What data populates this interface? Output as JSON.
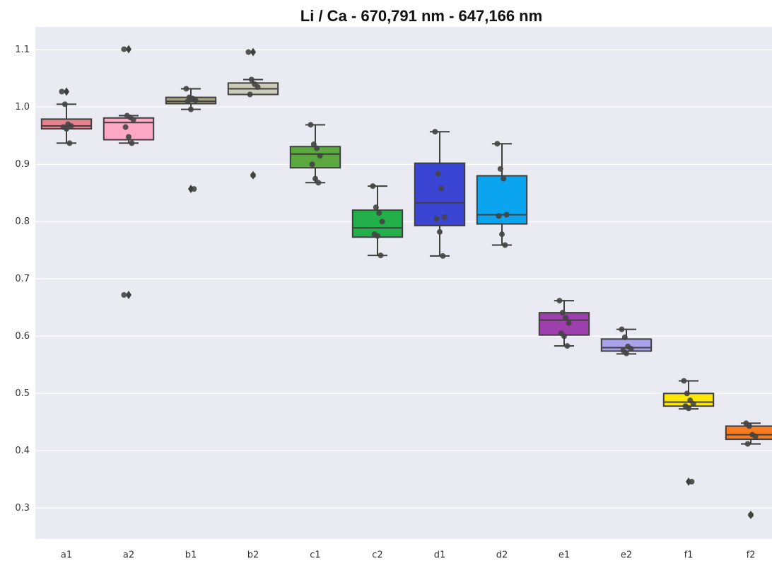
{
  "chart_data": {
    "type": "box",
    "title": "Li / Ca - 670,791 nm - 647,166 nm",
    "categories": [
      "a1",
      "a2",
      "b1",
      "b2",
      "c1",
      "c2",
      "d1",
      "d2",
      "e1",
      "e2",
      "f1",
      "f2"
    ],
    "colors": [
      "#e5808d",
      "#ffa8c5",
      "#a3a07a",
      "#cbcbb8",
      "#5ba83f",
      "#23b04b",
      "#3a45d4",
      "#0ba4ee",
      "#9d3fad",
      "#aaa2ea",
      "#fde704",
      "#f97c23"
    ],
    "boxes": [
      {
        "whislo": 0.937,
        "q1": 0.962,
        "med": 0.967,
        "q3": 0.979,
        "whishi": 1.005
      },
      {
        "whislo": 0.937,
        "q1": 0.943,
        "med": 0.973,
        "q3": 0.981,
        "whishi": 0.985
      },
      {
        "whislo": 0.996,
        "q1": 1.006,
        "med": 1.01,
        "q3": 1.017,
        "whishi": 1.032
      },
      {
        "whislo": 1.022,
        "q1": 1.022,
        "med": 1.032,
        "q3": 1.042,
        "whishi": 1.048
      },
      {
        "whislo": 0.868,
        "q1": 0.894,
        "med": 0.918,
        "q3": 0.931,
        "whishi": 0.969
      },
      {
        "whislo": 0.741,
        "q1": 0.773,
        "med": 0.789,
        "q3": 0.82,
        "whishi": 0.862
      },
      {
        "whislo": 0.74,
        "q1": 0.793,
        "med": 0.833,
        "q3": 0.902,
        "whishi": 0.957
      },
      {
        "whislo": 0.759,
        "q1": 0.796,
        "med": 0.812,
        "q3": 0.88,
        "whishi": 0.936
      },
      {
        "whislo": 0.583,
        "q1": 0.602,
        "med": 0.628,
        "q3": 0.641,
        "whishi": 0.662
      },
      {
        "whislo": 0.569,
        "q1": 0.574,
        "med": 0.58,
        "q3": 0.595,
        "whishi": 0.612
      },
      {
        "whislo": 0.473,
        "q1": 0.478,
        "med": 0.485,
        "q3": 0.5,
        "whishi": 0.522
      },
      {
        "whislo": 0.412,
        "q1": 0.42,
        "med": 0.428,
        "q3": 0.443,
        "whishi": 0.448
      }
    ],
    "fliers": [
      [
        1.027
      ],
      [
        1.101,
        0.672
      ],
      [
        0.857
      ],
      [
        1.096,
        0.881
      ],
      [],
      [],
      [],
      [],
      [],
      [],
      [
        0.346
      ],
      [
        0.288
      ]
    ],
    "points": [
      [
        1.027,
        1.005,
        0.97,
        0.967,
        0.965,
        0.962,
        0.937
      ],
      [
        1.101,
        0.985,
        0.982,
        0.978,
        0.965,
        0.948,
        0.937,
        0.672
      ],
      [
        1.032,
        1.017,
        1.015,
        1.012,
        1.01,
        0.996,
        0.857
      ],
      [
        1.096,
        1.048,
        1.04,
        1.035,
        1.022,
        0.881
      ],
      [
        0.969,
        0.935,
        0.928,
        0.915,
        0.9,
        0.875,
        0.868
      ],
      [
        0.862,
        0.825,
        0.815,
        0.8,
        0.778,
        0.775,
        0.741
      ],
      [
        0.957,
        0.884,
        0.858,
        0.808,
        0.805,
        0.782,
        0.74
      ],
      [
        0.936,
        0.892,
        0.875,
        0.812,
        0.81,
        0.778,
        0.759
      ],
      [
        0.662,
        0.641,
        0.632,
        0.623,
        0.605,
        0.6,
        0.583
      ],
      [
        0.612,
        0.598,
        0.582,
        0.578,
        0.575,
        0.57
      ],
      [
        0.522,
        0.5,
        0.488,
        0.482,
        0.478,
        0.474,
        0.346
      ],
      [
        0.448,
        0.443,
        0.428,
        0.425,
        0.412,
        0.288
      ]
    ],
    "ylim": [
      0.246,
      1.14
    ],
    "yticks": [
      0.3,
      0.4,
      0.5,
      0.6,
      0.7,
      0.8,
      0.9,
      {
        "value": 1,
        "label": "1.0"
      },
      1.1
    ],
    "grid": true
  }
}
